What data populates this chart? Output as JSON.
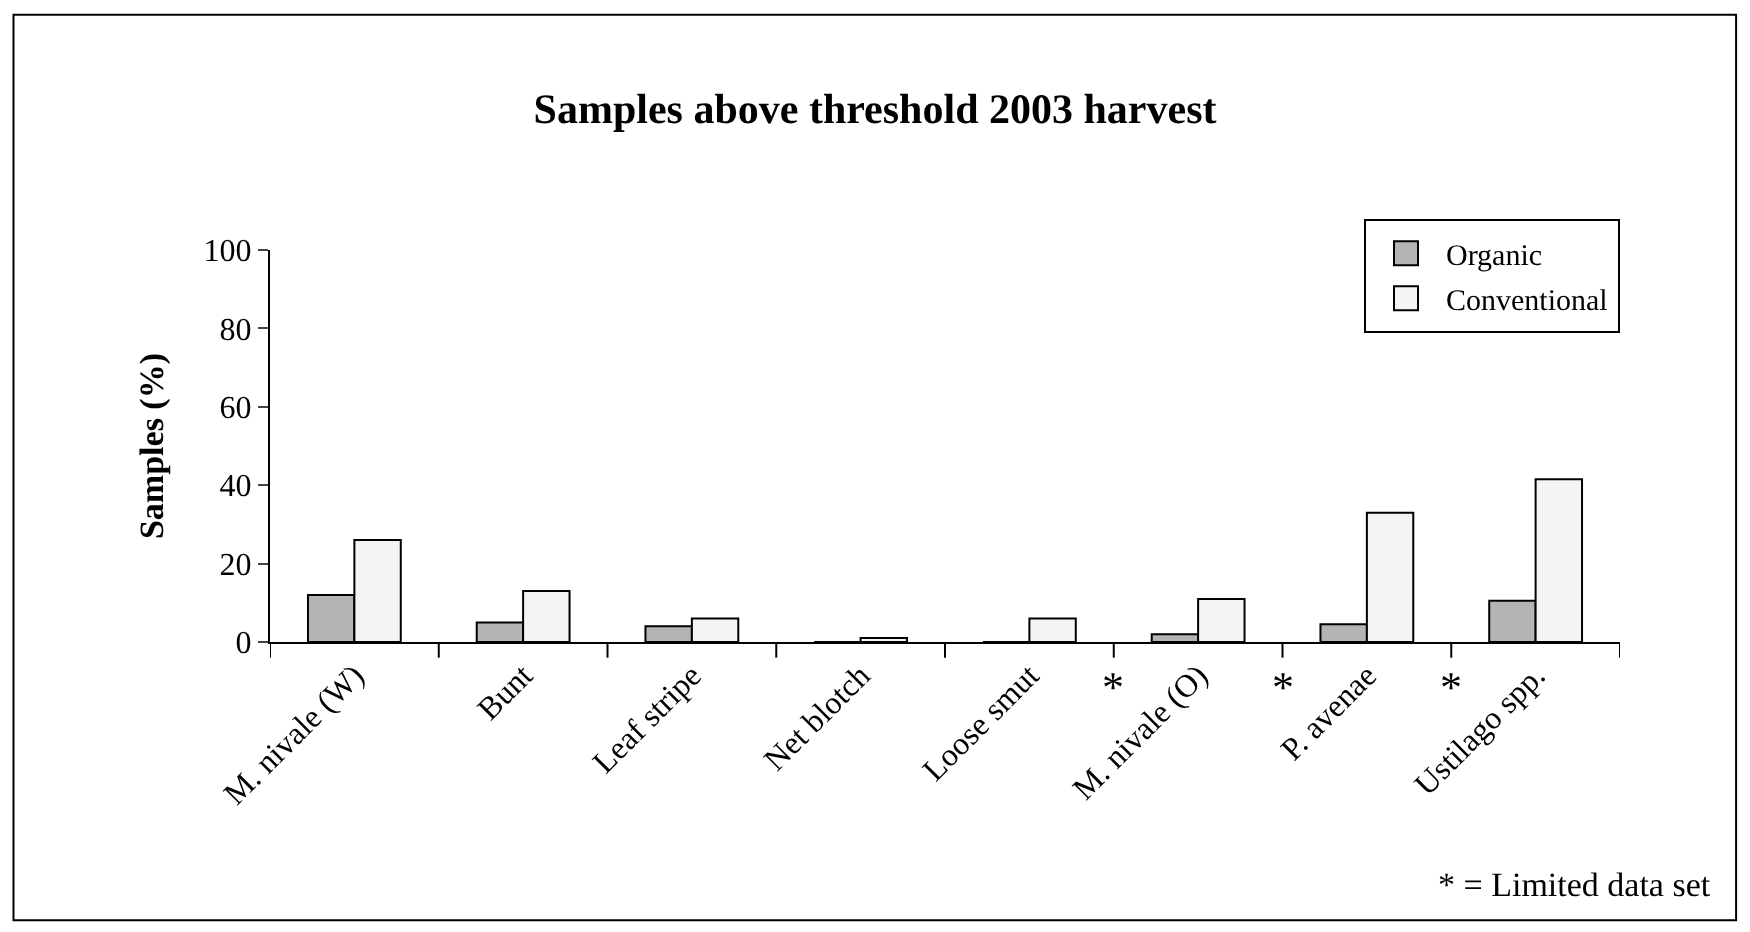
{
  "chart_data": {
    "type": "bar",
    "title": "Samples above threshold 2003 harvest",
    "ylabel": "Samples (%)",
    "categories": [
      "M. nivale (W)",
      "Bunt",
      "Leaf stripe",
      "Net blotch",
      "Loose smut",
      "M. nivale (O)",
      "P. avenae",
      "Ustilago spp."
    ],
    "series": [
      {
        "name": "Organic",
        "color": "#b4b4b4",
        "values": [
          12,
          5,
          4,
          0,
          0,
          2,
          4.5,
          10.5
        ]
      },
      {
        "name": "Conventional",
        "color": "#f4f4f4",
        "values": [
          26,
          13,
          6,
          1,
          6,
          11,
          33,
          41.5
        ]
      }
    ],
    "ylim": [
      0,
      100
    ],
    "yticks": [
      0,
      20,
      40,
      60,
      80,
      100
    ],
    "legend": "top right",
    "annotations": [
      "*",
      "*",
      "*",
      "* = Limited data set"
    ]
  }
}
